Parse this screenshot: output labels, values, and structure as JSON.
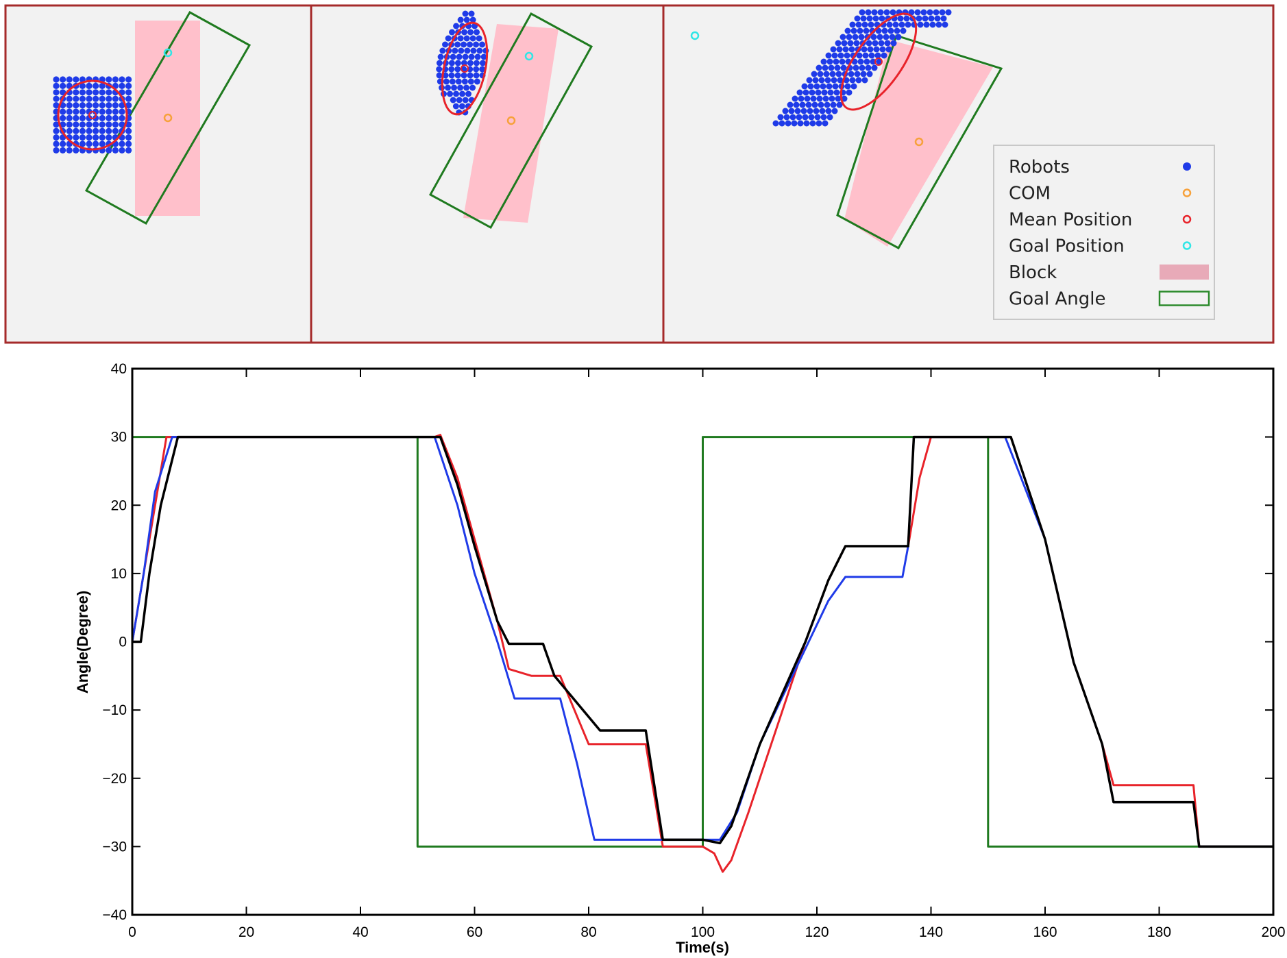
{
  "legend": {
    "items": [
      {
        "label": "Robots",
        "symbol": "filled-dot",
        "color": "#1f3be8"
      },
      {
        "label": "COM",
        "symbol": "ring",
        "color": "#f7a13a"
      },
      {
        "label": "Mean Position",
        "symbol": "ring",
        "color": "#e8232a"
      },
      {
        "label": "Goal Position",
        "symbol": "ring",
        "color": "#2fe6e6"
      },
      {
        "label": "Block",
        "symbol": "pink-rect",
        "color": "#e8aab8"
      },
      {
        "label": "Goal Angle",
        "symbol": "green-rect-outline",
        "color": "#2a8a2a"
      }
    ]
  },
  "colors": {
    "block": "#ffc0cb",
    "goal_angle": "#1f7a1f",
    "robot": "#1f3be8",
    "mean": "#e8232a",
    "com": "#f7a13a",
    "goal_pos": "#2fe6e6",
    "panel_border": "#a52a2a",
    "panel_bg": "#f2f2f2"
  },
  "chart_data": {
    "type": "line",
    "xlabel": "Time(s)",
    "ylabel": "Angle(Degree)",
    "xlim": [
      0,
      200
    ],
    "ylim": [
      -40,
      40
    ],
    "xticks": [
      0,
      20,
      40,
      60,
      80,
      100,
      120,
      140,
      160,
      180,
      200
    ],
    "yticks": [
      -40,
      -30,
      -20,
      -10,
      0,
      10,
      20,
      30,
      40
    ],
    "xtick_labels": [
      "0",
      "20",
      "40",
      "60",
      "80",
      "100",
      "120",
      "140",
      "160",
      "180",
      "200"
    ],
    "ytick_labels": [
      "−40",
      "−30",
      "−20",
      "−10",
      "0",
      "10",
      "20",
      "30",
      "40"
    ],
    "series": [
      {
        "color": "#1f7a1f",
        "x": [
          0,
          50,
          50,
          100,
          100,
          150,
          150,
          200,
          200
        ],
        "y": [
          30,
          30,
          -30,
          -30,
          30,
          30,
          -30,
          -30,
          8
        ]
      },
      {
        "color": "#e8232a",
        "x": [
          0,
          3,
          6,
          10,
          50,
          53,
          54,
          57,
          60,
          64,
          66,
          70,
          75,
          80,
          90,
          93,
          100,
          102,
          103.5,
          105,
          108,
          112,
          118,
          122,
          125,
          130,
          135,
          136,
          138,
          140,
          150,
          154,
          160,
          165,
          170,
          172,
          180,
          186,
          187,
          190,
          200
        ],
        "y": [
          0,
          15,
          30,
          30,
          30,
          30,
          30.3,
          24,
          15,
          3,
          -4,
          -5,
          -5,
          -15,
          -15,
          -30,
          -30,
          -31,
          -33.7,
          -32,
          -25,
          -15,
          0,
          9,
          14,
          14,
          14,
          14,
          24,
          30,
          30,
          30,
          15,
          -3,
          -15,
          -21,
          -21,
          -21,
          -30,
          -30,
          -30
        ]
      },
      {
        "color": "#1f3be8",
        "x": [
          0,
          2,
          4,
          7,
          10,
          50,
          53,
          57,
          60,
          64,
          67,
          70,
          75,
          78,
          81,
          82,
          90,
          93,
          100,
          103,
          106,
          110,
          118,
          122,
          125,
          130,
          135,
          136,
          137,
          140,
          150,
          153,
          160,
          165,
          170,
          172,
          180,
          186,
          187,
          190,
          200
        ],
        "y": [
          0,
          10,
          22,
          30,
          30,
          30,
          30,
          20,
          10,
          0,
          -8.3,
          -8.3,
          -8.3,
          -18,
          -29,
          -29,
          -29,
          -29,
          -29,
          -29,
          -25,
          -15,
          -1,
          6,
          9.5,
          9.5,
          9.5,
          14,
          30,
          30,
          30,
          30,
          15,
          -3,
          -15,
          -23.5,
          -23.5,
          -23.5,
          -30,
          -30,
          -30
        ]
      },
      {
        "color": "#000000",
        "x": [
          0,
          1.5,
          3,
          5,
          8,
          10,
          50,
          53,
          54,
          57,
          60,
          64,
          66,
          72,
          74,
          78,
          82,
          90,
          93,
          100,
          103,
          105,
          110,
          118,
          122,
          125,
          130,
          136,
          137,
          140,
          150,
          154,
          160,
          165,
          170,
          172,
          180,
          186,
          187,
          190,
          200
        ],
        "y": [
          0,
          0,
          10,
          20,
          30,
          30,
          30,
          30,
          30,
          23,
          14,
          3,
          -0.3,
          -0.3,
          -5,
          -9,
          -13,
          -13,
          -29,
          -29,
          -29.5,
          -27,
          -15,
          0,
          9,
          14,
          14,
          14,
          30,
          30,
          30,
          30,
          15,
          -3,
          -15,
          -23.5,
          -23.5,
          -23.5,
          -30,
          -30,
          -30
        ]
      }
    ]
  }
}
